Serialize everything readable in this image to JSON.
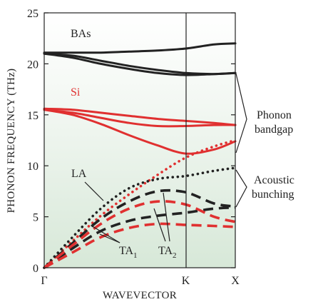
{
  "chart_data": {
    "type": "line",
    "xlabel": "WAVEVECTOR",
    "ylabel": "PHONON FREQUENCY (THz)",
    "x_ticks": [
      "Γ",
      "K",
      "X"
    ],
    "x_positions": {
      "Γ": 0,
      "K": 1,
      "X": 1.35
    },
    "ylim": [
      0,
      25
    ],
    "y_ticks": [
      0,
      5,
      10,
      15,
      20,
      25
    ],
    "grid": false,
    "background": "green vertical gradient",
    "colors": {
      "BAs": "#222222",
      "Si": "#e03030"
    },
    "materials": [
      {
        "name": "BAs",
        "label": "BAs",
        "color": "#222222"
      },
      {
        "name": "Si",
        "label": "Si",
        "color": "#e03030"
      }
    ],
    "series": [
      {
        "material": "BAs",
        "branch": "optical-1",
        "style": "solid",
        "x": [
          0,
          0.2,
          0.4,
          0.6,
          0.8,
          1.0,
          1.2,
          1.35
        ],
        "y": [
          21.1,
          21.1,
          21.1,
          21.2,
          21.3,
          21.5,
          21.9,
          22.0
        ]
      },
      {
        "material": "BAs",
        "branch": "optical-2",
        "style": "solid",
        "x": [
          0,
          0.2,
          0.4,
          0.6,
          0.8,
          1.0,
          1.2,
          1.35
        ],
        "y": [
          21.0,
          20.8,
          20.3,
          19.8,
          19.4,
          19.1,
          19.0,
          19.1
        ]
      },
      {
        "material": "BAs",
        "branch": "optical-3",
        "style": "solid",
        "x": [
          0,
          0.2,
          0.4,
          0.6,
          0.8,
          1.0,
          1.2,
          1.35
        ],
        "y": [
          21.0,
          20.6,
          20.0,
          19.5,
          19.1,
          18.9,
          19.0,
          19.1
        ]
      },
      {
        "material": "Si",
        "branch": "optical-1",
        "style": "solid",
        "x": [
          0,
          0.2,
          0.4,
          0.6,
          0.8,
          1.0,
          1.2,
          1.35
        ],
        "y": [
          15.6,
          15.5,
          15.2,
          14.9,
          14.6,
          14.4,
          14.2,
          14.0
        ]
      },
      {
        "material": "Si",
        "branch": "optical-2",
        "style": "solid",
        "x": [
          0,
          0.2,
          0.4,
          0.6,
          0.8,
          1.0,
          1.2,
          1.35
        ],
        "y": [
          15.5,
          15.2,
          14.7,
          14.2,
          13.9,
          13.9,
          14.0,
          14.0
        ]
      },
      {
        "material": "Si",
        "branch": "optical-3",
        "style": "solid",
        "x": [
          0,
          0.2,
          0.4,
          0.6,
          0.8,
          1.0,
          1.2,
          1.35
        ],
        "y": [
          15.5,
          15.0,
          14.1,
          13.0,
          12.0,
          11.2,
          11.6,
          12.4
        ]
      },
      {
        "material": "Si",
        "branch": "LA",
        "style": "dotted",
        "x": [
          0,
          0.2,
          0.4,
          0.6,
          0.8,
          1.0,
          1.2,
          1.35
        ],
        "y": [
          0,
          2.6,
          5.1,
          7.2,
          9.1,
          10.8,
          11.9,
          12.5
        ]
      },
      {
        "material": "BAs",
        "branch": "LA",
        "style": "dotted",
        "x": [
          0,
          0.2,
          0.4,
          0.6,
          0.8,
          1.0,
          1.2,
          1.35
        ],
        "y": [
          0,
          3.0,
          5.8,
          7.8,
          8.7,
          9.0,
          9.5,
          9.8
        ]
      },
      {
        "material": "BAs",
        "branch": "TA-upper",
        "style": "dashed",
        "x": [
          0,
          0.2,
          0.4,
          0.6,
          0.8,
          1.0,
          1.2,
          1.35
        ],
        "y": [
          0,
          2.4,
          4.8,
          6.5,
          7.5,
          7.4,
          6.3,
          6.0
        ]
      },
      {
        "material": "BAs",
        "branch": "TA-lower",
        "style": "dashed",
        "x": [
          0,
          0.2,
          0.4,
          0.6,
          0.8,
          1.0,
          1.2,
          1.35
        ],
        "y": [
          0,
          1.9,
          3.6,
          4.6,
          5.1,
          5.4,
          5.8,
          5.9
        ]
      },
      {
        "material": "Si",
        "branch": "TA-upper",
        "style": "dashed",
        "x": [
          0,
          0.2,
          0.4,
          0.6,
          0.8,
          1.0,
          1.2,
          1.35
        ],
        "y": [
          0,
          2.2,
          4.3,
          5.8,
          6.5,
          6.2,
          5.0,
          4.5
        ]
      },
      {
        "material": "Si",
        "branch": "TA-lower",
        "style": "dashed",
        "x": [
          0,
          0.2,
          0.4,
          0.6,
          0.8,
          1.0,
          1.2,
          1.35
        ],
        "y": [
          0,
          1.5,
          3.0,
          3.9,
          4.3,
          4.2,
          4.1,
          4.0
        ]
      }
    ],
    "annotations": {
      "la": "LA",
      "ta1": {
        "base": "TA",
        "sub": "1"
      },
      "ta2": {
        "base": "TA",
        "sub": "2"
      },
      "phonon_bandgap": [
        "Phonon",
        "bandgap"
      ],
      "acoustic_bunching": [
        "Acoustic",
        "bunching"
      ]
    }
  }
}
